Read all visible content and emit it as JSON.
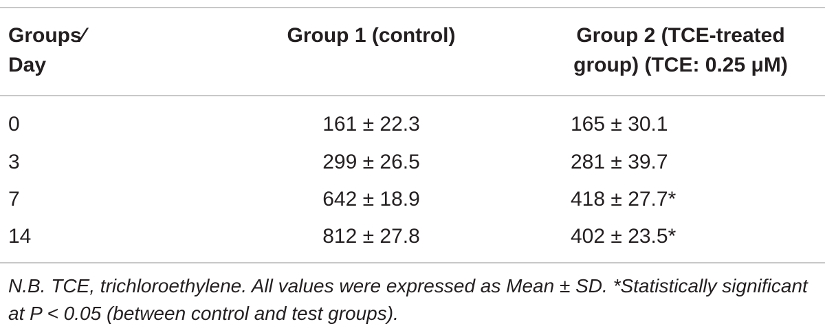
{
  "table": {
    "headers": {
      "col1_line1": "Groups∕",
      "col1_line2": "Day",
      "col2": "Group 1 (control)",
      "col3_line1": "Group 2 (TCE-treated",
      "col3_line2": "group) (TCE: 0.25 μM)"
    },
    "rows": [
      {
        "day": "0",
        "group1": "161 ± 22.3",
        "group2": "165 ± 30.1"
      },
      {
        "day": "3",
        "group1": "299 ± 26.5",
        "group2": "281 ± 39.7"
      },
      {
        "day": "7",
        "group1": "642 ± 18.9",
        "group2": "418 ± 27.7*"
      },
      {
        "day": "14",
        "group1": "812 ± 27.8",
        "group2": "402 ± 23.5*"
      }
    ],
    "footnote": "N.B. TCE, trichloroethylene. All values were expressed as Mean ± SD. *Statistically significant at P < 0.05 (between control and test groups)."
  }
}
